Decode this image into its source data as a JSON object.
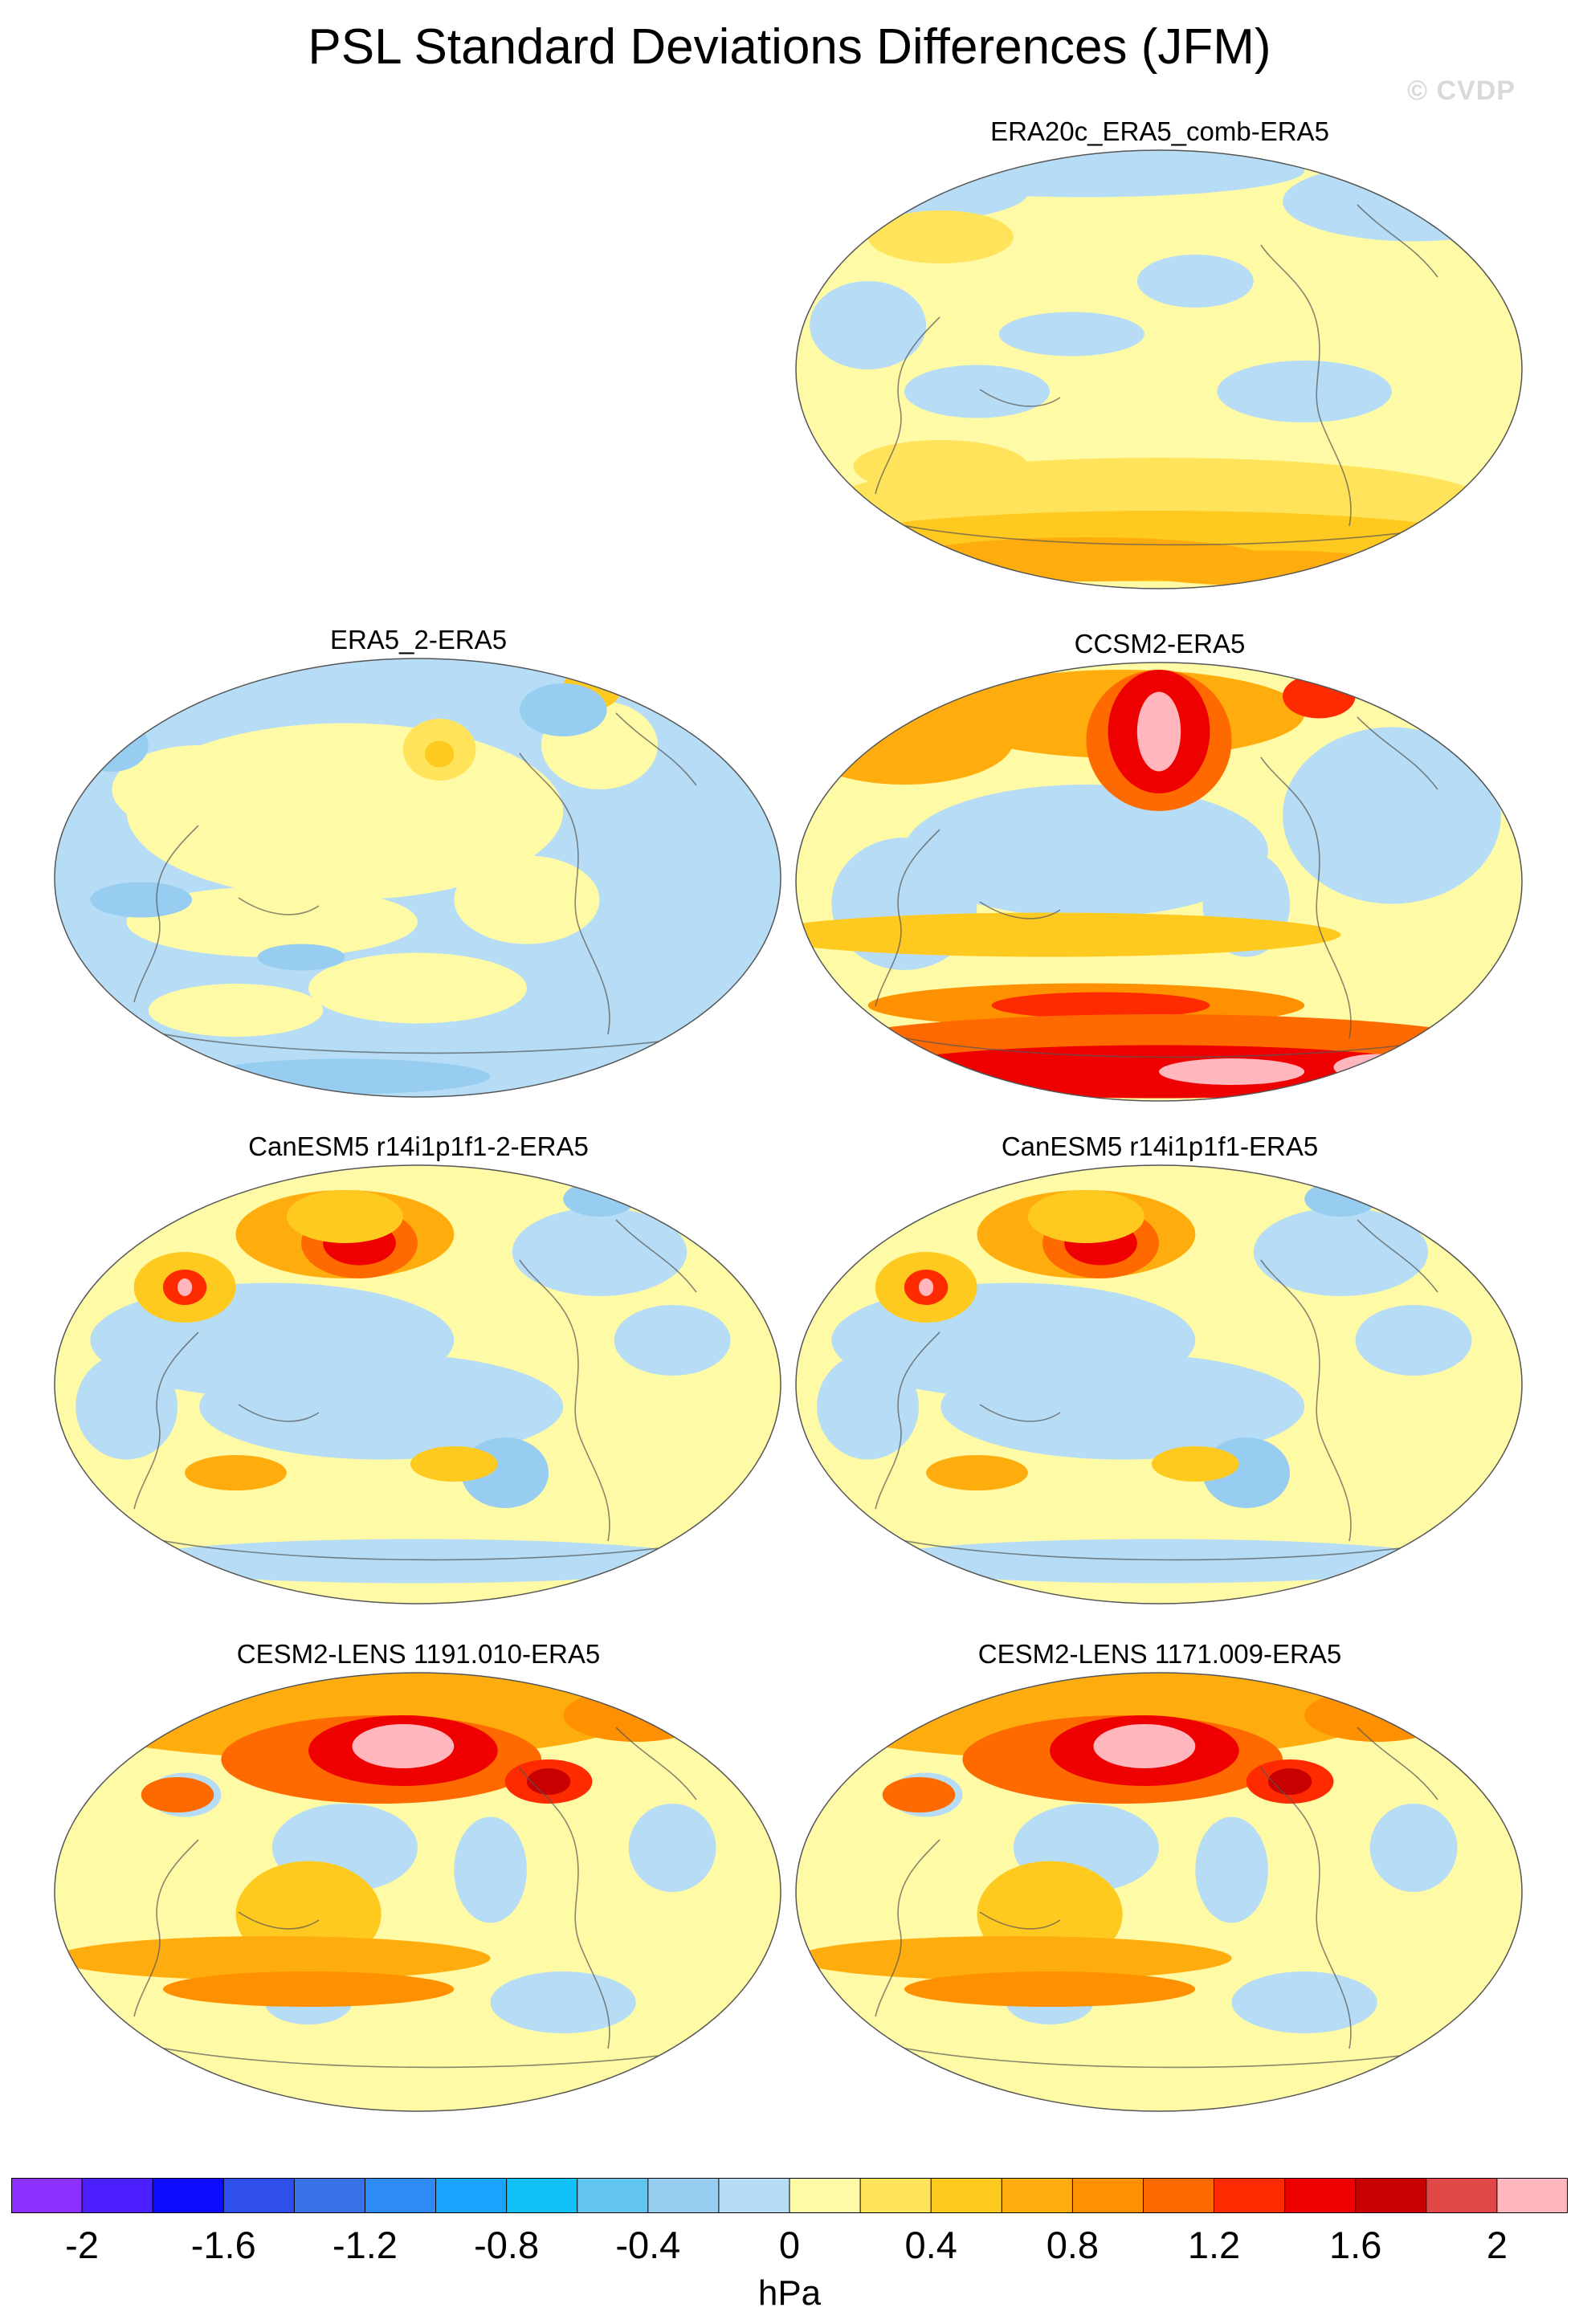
{
  "title": "PSL Standard Deviations Differences (JFM)",
  "watermark": "© CVDP",
  "units": "hPa",
  "palette": [
    "#8c30ff",
    "#4b1fff",
    "#0c0cff",
    "#2f4fea",
    "#3a72e8",
    "#2e8af5",
    "#1aa3ff",
    "#12c1f7",
    "#62c5f0",
    "#96cdf0",
    "#b6ddf5",
    "#fffaa6",
    "#ffe35a",
    "#ffca1f",
    "#ffad0e",
    "#ff9000",
    "#ff6a00",
    "#ff2b00",
    "#ee0000",
    "#c80000",
    "#e04848",
    "#ffb6bd"
  ],
  "tick_labels": [
    "-2",
    "-1.6",
    "-1.2",
    "-0.8",
    "-0.4",
    "0",
    "0.4",
    "0.8",
    "1.2",
    "1.6",
    "2"
  ],
  "panels": [
    {
      "title": "ERA20c_ERA5_comb-ERA5",
      "scheme": "weak"
    },
    {
      "title": "ERA5_2-ERA5",
      "scheme": "weak-neg"
    },
    {
      "title": "CCSM2-ERA5",
      "scheme": "strong"
    },
    {
      "title": "CanESM5 r14i1p1f1-2-ERA5",
      "scheme": "moderate"
    },
    {
      "title": "CanESM5 r14i1p1f1-ERA5",
      "scheme": "moderate"
    },
    {
      "title": "CESM2-LENS 1191.010-ERA5",
      "scheme": "strong-north"
    },
    {
      "title": "CESM2-LENS 1171.009-ERA5",
      "scheme": "strong-north"
    }
  ]
}
